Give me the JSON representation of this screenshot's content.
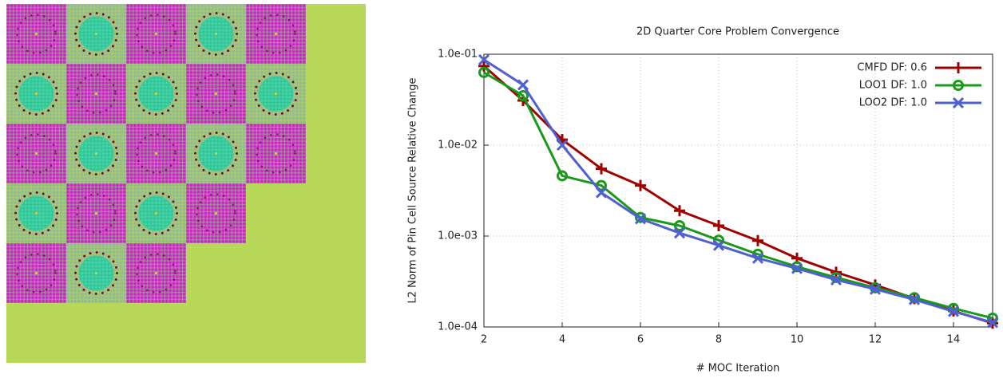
{
  "chart_data": {
    "type": "line",
    "title": "2D Quarter Core Problem Convergence",
    "x_label": "# MOC Iteration",
    "y_label": "L2 Norm of Pin Cell Source Relative Change",
    "x": [
      2,
      3,
      4,
      5,
      6,
      7,
      8,
      9,
      10,
      11,
      12,
      13,
      14,
      15
    ],
    "xlim": [
      2,
      15
    ],
    "xticks": [
      2,
      4,
      6,
      8,
      10,
      12,
      14
    ],
    "ylim": [
      0.0001,
      0.1
    ],
    "yticks": [
      {
        "value": 0.1,
        "label": "1.0e-01"
      },
      {
        "value": 0.01,
        "label": "1.0e-02"
      },
      {
        "value": 0.001,
        "label": "1.0e-03"
      },
      {
        "value": 0.0001,
        "label": "1.0e-04"
      }
    ],
    "y_scale": "log",
    "grid": true,
    "legend": "top-right",
    "series": [
      {
        "name": "CMFD DF: 0.6",
        "color": "#a00000",
        "marker": "plus",
        "values": [
          0.074,
          0.031,
          0.0115,
          0.0055,
          0.0036,
          0.0019,
          0.0013,
          0.00089,
          0.00057,
          0.0004,
          0.00029,
          0.000205,
          0.00015,
          0.00011
        ]
      },
      {
        "name": "LOO1 DF: 1.0",
        "color": "#1a9a1a",
        "marker": "circle",
        "values": [
          0.063,
          0.035,
          0.0046,
          0.0036,
          0.0016,
          0.0013,
          0.0009,
          0.00063,
          0.00046,
          0.00035,
          0.00027,
          0.00021,
          0.00016,
          0.000125
        ]
      },
      {
        "name": "LOO2 DF: 1.0",
        "color": "#5060d0",
        "marker": "x",
        "values": [
          0.087,
          0.046,
          0.01,
          0.003,
          0.00155,
          0.00108,
          0.00079,
          0.00057,
          0.00044,
          0.00033,
          0.00026,
          0.0002,
          0.000148,
          0.000112
        ]
      }
    ]
  }
}
